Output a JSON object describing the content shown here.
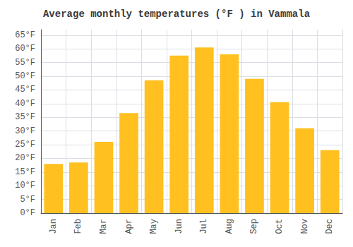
{
  "chart_data": {
    "type": "bar",
    "title": "Average monthly temperatures (°F ) in Vammala",
    "categories": [
      "Jan",
      "Feb",
      "Mar",
      "Apr",
      "May",
      "Jun",
      "Jul",
      "Aug",
      "Sep",
      "Oct",
      "Nov",
      "Dec"
    ],
    "values": [
      18,
      18.5,
      26,
      36.5,
      48.5,
      57.5,
      60.5,
      58,
      49,
      40.5,
      31,
      23
    ],
    "color": "#FFC020",
    "ylim": [
      0,
      67
    ],
    "yticks": [
      {
        "value": 0,
        "label": "0°F"
      },
      {
        "value": 5,
        "label": "5°F"
      },
      {
        "value": 10,
        "label": "10°F"
      },
      {
        "value": 15,
        "label": "15°F"
      },
      {
        "value": 20,
        "label": "20°F"
      },
      {
        "value": 25,
        "label": "25°F"
      },
      {
        "value": 30,
        "label": "30°F"
      },
      {
        "value": 35,
        "label": "35°F"
      },
      {
        "value": 40,
        "label": "40°F"
      },
      {
        "value": 45,
        "label": "45°F"
      },
      {
        "value": 50,
        "label": "50°F"
      },
      {
        "value": 55,
        "label": "55°F"
      },
      {
        "value": 60,
        "label": "60°F"
      },
      {
        "value": 65,
        "label": "65°F"
      }
    ],
    "grid": true
  }
}
